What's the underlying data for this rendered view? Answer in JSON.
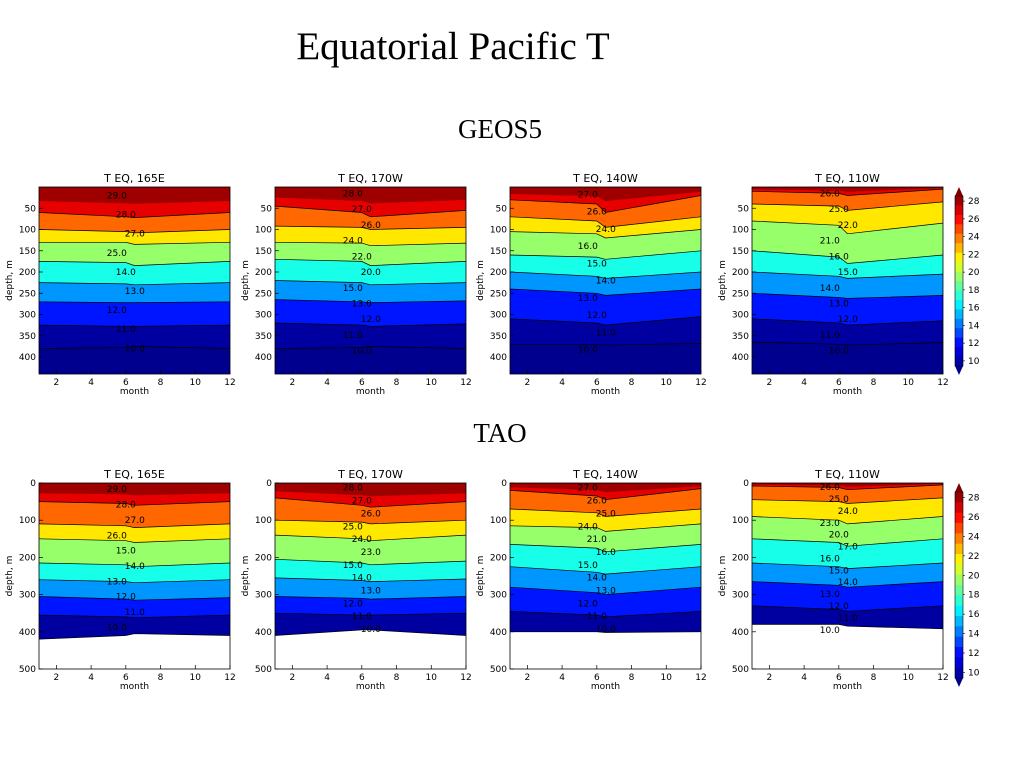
{
  "slide": {
    "title": "Equatorial Pacific T",
    "section_geos": "GEOS5",
    "section_tao": "TAO"
  },
  "colorbar_geos": {
    "ticks": [
      "10",
      "12",
      "14",
      "16",
      "18",
      "20",
      "22",
      "24",
      "26",
      "28"
    ]
  },
  "colorbar_tao": {
    "ticks": [
      "10",
      "12",
      "14",
      "16",
      "18",
      "20",
      "22",
      "24",
      "26",
      "28"
    ]
  },
  "colors": {
    "jet": [
      "#00008f",
      "#0000ff",
      "#0080ff",
      "#00ffff",
      "#80ff80",
      "#ffff00",
      "#ff8000",
      "#ff0000",
      "#800000"
    ]
  },
  "chart_data": [
    {
      "type": "heatmap",
      "group": "GEOS5",
      "title": "T EQ, 165E",
      "xlabel": "month",
      "ylabel": "depth, m",
      "xlim": [
        1,
        12
      ],
      "ylim": [
        440,
        0
      ],
      "xticks": [
        "2",
        "4",
        "6",
        "8",
        "10",
        "12"
      ],
      "yticks": [
        "50",
        "100",
        "150",
        "200",
        "250",
        "300",
        "350",
        "400"
      ],
      "x": [
        1,
        6,
        6.5,
        12
      ],
      "depths": [
        [
          60,
          70,
          72,
          60
        ],
        [
          100,
          105,
          108,
          100
        ],
        [
          130,
          130,
          135,
          130
        ],
        [
          175,
          178,
          185,
          175
        ],
        [
          225,
          228,
          230,
          225
        ],
        [
          270,
          272,
          272,
          270
        ],
        [
          325,
          328,
          328,
          325
        ],
        [
          380,
          378,
          375,
          380
        ]
      ],
      "contour_labels": [
        "29.0",
        "28.0",
        "27.0",
        "25.0",
        "14.0",
        "13.0",
        "12.0",
        "11.0",
        "10.0"
      ]
    },
    {
      "type": "heatmap",
      "group": "GEOS5",
      "title": "T EQ, 170W",
      "xlabel": "month",
      "ylabel": "depth, m",
      "xlim": [
        1,
        12
      ],
      "ylim": [
        440,
        0
      ],
      "xticks": [
        "2",
        "4",
        "6",
        "8",
        "10",
        "12"
      ],
      "yticks": [
        "50",
        "100",
        "150",
        "200",
        "250",
        "300",
        "350",
        "400"
      ],
      "x": [
        1,
        6,
        6.5,
        12
      ],
      "depths": [
        [
          45,
          60,
          70,
          55
        ],
        [
          92,
          95,
          100,
          95
        ],
        [
          130,
          132,
          138,
          132
        ],
        [
          170,
          175,
          185,
          175
        ],
        [
          220,
          225,
          230,
          225
        ],
        [
          265,
          270,
          272,
          268
        ],
        [
          320,
          325,
          328,
          322
        ],
        [
          380,
          378,
          375,
          380
        ]
      ],
      "contour_labels": [
        "28.0",
        "27.0",
        "26.0",
        "24.0",
        "22.0",
        "20.0",
        "15.0",
        "13.0",
        "12.0",
        "11.0",
        "10.0"
      ]
    },
    {
      "type": "heatmap",
      "group": "GEOS5",
      "title": "T EQ, 140W",
      "xlabel": "month",
      "ylabel": "depth, m",
      "xlim": [
        1,
        12
      ],
      "ylim": [
        440,
        0
      ],
      "xticks": [
        "2",
        "4",
        "6",
        "8",
        "10",
        "12"
      ],
      "yticks": [
        "50",
        "100",
        "150",
        "200",
        "250",
        "300",
        "350",
        "400"
      ],
      "x": [
        1,
        6,
        6.5,
        12
      ],
      "depths": [
        [
          30,
          40,
          60,
          20
        ],
        [
          70,
          80,
          95,
          70
        ],
        [
          105,
          110,
          120,
          100
        ],
        [
          160,
          165,
          170,
          150
        ],
        [
          200,
          210,
          215,
          200
        ],
        [
          240,
          250,
          255,
          240
        ],
        [
          310,
          320,
          325,
          305
        ],
        [
          370,
          370,
          372,
          368
        ]
      ],
      "contour_labels": [
        "27.0",
        "26.0",
        "24.0",
        "16.0",
        "15.0",
        "14.0",
        "13.0",
        "12.0",
        "11.0",
        "10.0"
      ]
    },
    {
      "type": "heatmap",
      "group": "GEOS5",
      "title": "T EQ, 110W",
      "xlabel": "month",
      "ylabel": "depth, m",
      "xlim": [
        1,
        12
      ],
      "ylim": [
        440,
        0
      ],
      "xticks": [
        "2",
        "4",
        "6",
        "8",
        "10",
        "12"
      ],
      "yticks": [
        "50",
        "100",
        "150",
        "200",
        "250",
        "300",
        "350",
        "400"
      ],
      "x": [
        1,
        6,
        6.5,
        12
      ],
      "depths": [
        [
          10,
          15,
          20,
          5
        ],
        [
          40,
          45,
          55,
          35
        ],
        [
          80,
          90,
          110,
          85
        ],
        [
          150,
          165,
          180,
          160
        ],
        [
          200,
          210,
          215,
          205
        ],
        [
          250,
          260,
          262,
          255
        ],
        [
          310,
          320,
          325,
          315
        ],
        [
          365,
          370,
          372,
          366
        ]
      ],
      "contour_labels": [
        "26.0",
        "25.0",
        "22.0",
        "21.0",
        "16.0",
        "15.0",
        "14.0",
        "13.0",
        "12.0",
        "11.0",
        "10.0"
      ]
    },
    {
      "type": "heatmap",
      "group": "TAO",
      "title": "T EQ, 165E",
      "xlabel": "month",
      "ylabel": "depth, m",
      "xlim": [
        1,
        12
      ],
      "ylim": [
        500,
        0
      ],
      "xticks": [
        "2",
        "4",
        "6",
        "8",
        "10",
        "12"
      ],
      "yticks": [
        "0",
        "100",
        "200",
        "300",
        "400",
        "500"
      ],
      "x": [
        1,
        6,
        6.5,
        12
      ],
      "depths": [
        [
          50,
          55,
          60,
          50
        ],
        [
          110,
          115,
          120,
          110
        ],
        [
          150,
          155,
          160,
          150
        ],
        [
          215,
          220,
          225,
          215
        ],
        [
          260,
          265,
          268,
          260
        ],
        [
          305,
          312,
          315,
          308
        ],
        [
          355,
          360,
          362,
          355
        ],
        [
          420,
          410,
          405,
          410
        ]
      ],
      "contour_labels": [
        "29.0",
        "28.0",
        "27.0",
        "26.0",
        "15.0",
        "14.0",
        "13.0",
        "12.0",
        "11.0",
        "10.0"
      ]
    },
    {
      "type": "heatmap",
      "group": "TAO",
      "title": "T EQ, 170W",
      "xlabel": "month",
      "ylabel": "depth, m",
      "xlim": [
        1,
        12
      ],
      "ylim": [
        500,
        0
      ],
      "xticks": [
        "2",
        "4",
        "6",
        "8",
        "10",
        "12"
      ],
      "yticks": [
        "0",
        "100",
        "200",
        "300",
        "400",
        "500"
      ],
      "x": [
        1,
        6,
        6.5,
        12
      ],
      "depths": [
        [
          40,
          60,
          65,
          50
        ],
        [
          100,
          105,
          110,
          100
        ],
        [
          140,
          150,
          155,
          140
        ],
        [
          205,
          215,
          220,
          210
        ],
        [
          255,
          262,
          265,
          258
        ],
        [
          305,
          310,
          312,
          305
        ],
        [
          350,
          355,
          355,
          350
        ],
        [
          410,
          395,
          395,
          410
        ]
      ],
      "contour_labels": [
        "28.0",
        "27.0",
        "26.0",
        "25.0",
        "24.0",
        "23.0",
        "15.0",
        "14.0",
        "13.0",
        "12.0",
        "11.0",
        "10.0"
      ]
    },
    {
      "type": "heatmap",
      "group": "TAO",
      "title": "T EQ, 140W",
      "xlabel": "month",
      "ylabel": "depth, m",
      "xlim": [
        1,
        12
      ],
      "ylim": [
        500,
        0
      ],
      "xticks": [
        "2",
        "4",
        "6",
        "8",
        "10",
        "12"
      ],
      "yticks": [
        "0",
        "100",
        "200",
        "300",
        "400",
        "500"
      ],
      "x": [
        1,
        6,
        6.5,
        12
      ],
      "depths": [
        [
          20,
          35,
          45,
          15
        ],
        [
          70,
          80,
          90,
          70
        ],
        [
          115,
          120,
          130,
          110
        ],
        [
          165,
          175,
          185,
          165
        ],
        [
          225,
          240,
          245,
          225
        ],
        [
          280,
          295,
          300,
          280
        ],
        [
          345,
          355,
          360,
          345
        ],
        [
          400,
          400,
          402,
          400
        ]
      ],
      "contour_labels": [
        "27.0",
        "26.0",
        "25.0",
        "24.0",
        "21.0",
        "16.0",
        "15.0",
        "14.0",
        "13.0",
        "12.0",
        "11.0",
        "10.0"
      ]
    },
    {
      "type": "heatmap",
      "group": "TAO",
      "title": "T EQ, 110W",
      "xlabel": "month",
      "ylabel": "depth, m",
      "xlim": [
        1,
        12
      ],
      "ylim": [
        500,
        0
      ],
      "xticks": [
        "2",
        "4",
        "6",
        "8",
        "10",
        "12"
      ],
      "yticks": [
        "0",
        "100",
        "200",
        "300",
        "400",
        "500"
      ],
      "x": [
        1,
        6,
        6.5,
        12
      ],
      "depths": [
        [
          8,
          12,
          18,
          5
        ],
        [
          45,
          50,
          55,
          40
        ],
        [
          90,
          100,
          110,
          90
        ],
        [
          150,
          160,
          170,
          150
        ],
        [
          215,
          225,
          230,
          215
        ],
        [
          265,
          275,
          280,
          265
        ],
        [
          330,
          340,
          345,
          330
        ],
        [
          380,
          380,
          385,
          392
        ]
      ],
      "contour_labels": [
        "26.0",
        "25.0",
        "24.0",
        "23.0",
        "20.0",
        "17.0",
        "16.0",
        "15.0",
        "14.0",
        "13.0",
        "12.0",
        "11.0",
        "10.0"
      ]
    }
  ]
}
